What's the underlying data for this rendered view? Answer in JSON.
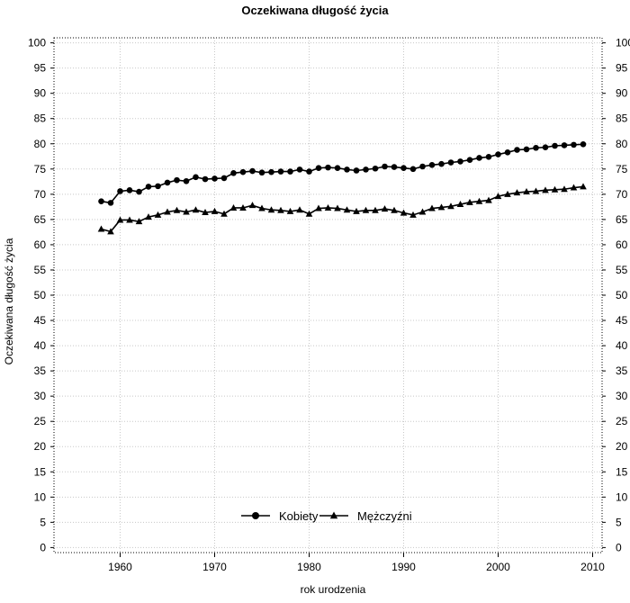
{
  "chart_data": {
    "type": "line",
    "title": "Oczekiwana długość życia",
    "xlabel": "rok urodzenia",
    "ylabel": "Oczekiwana długość życia",
    "xlim": [
      1953,
      2011
    ],
    "ylim": [
      -1,
      101
    ],
    "x_ticks": [
      1960,
      1970,
      1980,
      1990,
      2000,
      2010
    ],
    "y_ticks": [
      0,
      5,
      10,
      15,
      20,
      25,
      30,
      35,
      40,
      45,
      50,
      55,
      60,
      65,
      70,
      75,
      80,
      85,
      90,
      95,
      100
    ],
    "grid": true,
    "legend": "bottom-center",
    "x": [
      1958,
      1959,
      1960,
      1961,
      1962,
      1963,
      1964,
      1965,
      1966,
      1967,
      1968,
      1969,
      1970,
      1971,
      1972,
      1973,
      1974,
      1975,
      1976,
      1977,
      1978,
      1979,
      1980,
      1981,
      1982,
      1983,
      1984,
      1985,
      1986,
      1987,
      1988,
      1989,
      1990,
      1991,
      1992,
      1993,
      1994,
      1995,
      1996,
      1997,
      1998,
      1999,
      2000,
      2001,
      2002,
      2003,
      2004,
      2005,
      2006,
      2007,
      2008,
      2009
    ],
    "series": [
      {
        "name": "Kobiety",
        "marker": "circle",
        "color": "#000000",
        "values": [
          68.6,
          68.3,
          70.6,
          70.8,
          70.5,
          71.5,
          71.6,
          72.3,
          72.8,
          72.6,
          73.4,
          73.0,
          73.1,
          73.2,
          74.2,
          74.4,
          74.6,
          74.3,
          74.4,
          74.5,
          74.5,
          74.9,
          74.5,
          75.2,
          75.3,
          75.2,
          74.9,
          74.7,
          74.9,
          75.1,
          75.5,
          75.4,
          75.2,
          75.0,
          75.5,
          75.8,
          76.0,
          76.3,
          76.5,
          76.8,
          77.2,
          77.4,
          77.9,
          78.3,
          78.8,
          78.9,
          79.2,
          79.3,
          79.6,
          79.7,
          79.8,
          79.9
        ]
      },
      {
        "name": "Mężczyźni",
        "marker": "triangle",
        "color": "#000000",
        "values": [
          63.1,
          62.6,
          64.9,
          64.9,
          64.6,
          65.5,
          65.9,
          66.5,
          66.8,
          66.5,
          66.9,
          66.4,
          66.6,
          66.1,
          67.3,
          67.3,
          67.8,
          67.2,
          66.9,
          66.8,
          66.6,
          66.9,
          66.1,
          67.2,
          67.3,
          67.2,
          66.9,
          66.6,
          66.8,
          66.8,
          67.1,
          66.8,
          66.3,
          65.9,
          66.5,
          67.2,
          67.4,
          67.6,
          68.0,
          68.4,
          68.6,
          68.8,
          69.6,
          70.0,
          70.3,
          70.5,
          70.6,
          70.8,
          70.9,
          71.0,
          71.3,
          71.5
        ]
      }
    ]
  }
}
